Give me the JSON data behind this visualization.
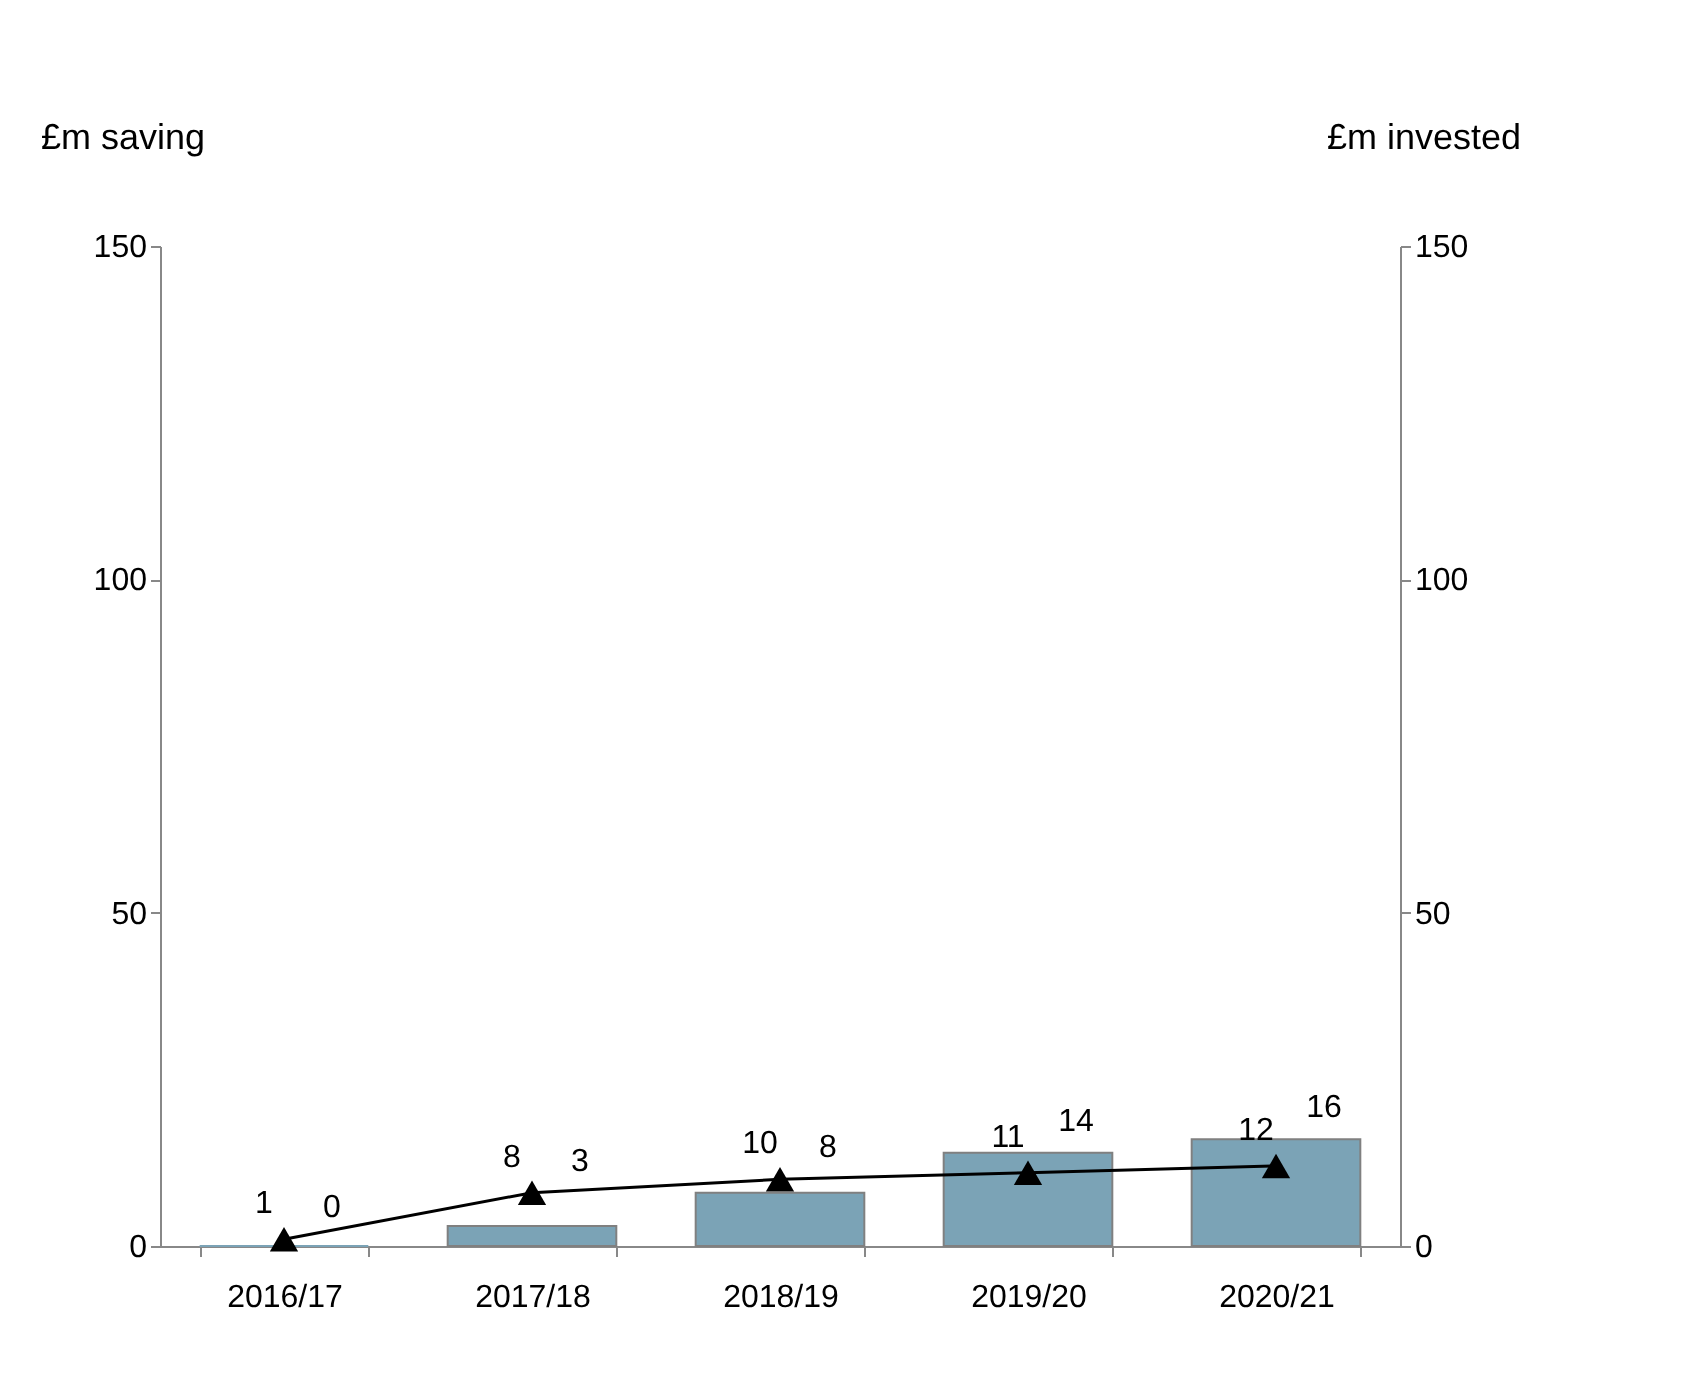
{
  "chart_data": {
    "type": "bar",
    "ylabel": "£m saving",
    "y2label": "£m invested",
    "categories": [
      "2016/17",
      "2017/18",
      "2018/19",
      "2019/20",
      "2020/21"
    ],
    "series": [
      {
        "color": "#7ba3b6",
        "values": [
          0,
          3,
          8,
          14,
          16
        ]
      },
      {
        "type": "line",
        "axis": "y2",
        "color": "#000000",
        "marker": "triangle",
        "values": [
          1,
          8,
          10,
          11,
          12
        ]
      }
    ],
    "ylim": [
      0,
      150
    ],
    "yticks": [
      0,
      50,
      100,
      150
    ],
    "y2lim": [
      0,
      150
    ],
    "y2ticks": [
      0,
      50,
      100,
      150
    ],
    "data_labels": true,
    "grid": false
  }
}
